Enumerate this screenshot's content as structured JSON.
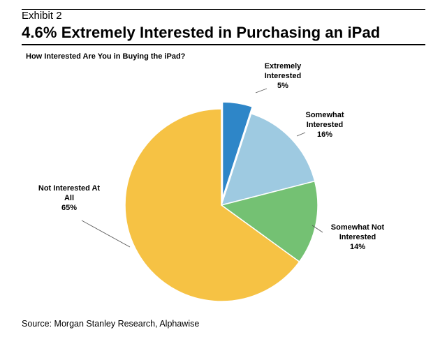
{
  "header": {
    "exhibit": "Exhibit 2",
    "headline": "4.6% Extremely Interested in Purchasing an iPad"
  },
  "chart_data": {
    "type": "pie",
    "title": "How Interested Are You in Buying the iPad?",
    "slices": [
      {
        "label_lines": [
          "Extremely",
          "Interested"
        ],
        "value": 5,
        "value_label": "5%",
        "color": "#2e86c8",
        "exploded": true
      },
      {
        "label_lines": [
          "Somewhat",
          "Interested"
        ],
        "value": 16,
        "value_label": "16%",
        "color": "#9ecae1",
        "exploded": false
      },
      {
        "label_lines": [
          "Somewhat Not",
          "Interested"
        ],
        "value": 14,
        "value_label": "14%",
        "color": "#74c173",
        "exploded": false
      },
      {
        "label_lines": [
          "Not Interested At",
          "All"
        ],
        "value": 65,
        "value_label": "65%",
        "color": "#f6c244",
        "exploded": false
      }
    ]
  },
  "footer": {
    "source": "Source: Morgan Stanley Research, Alphawise"
  }
}
